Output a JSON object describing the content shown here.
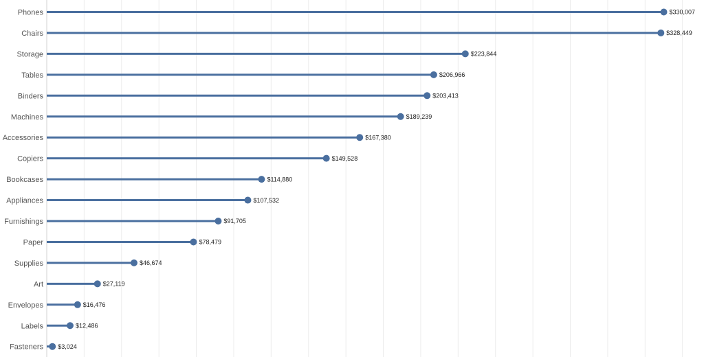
{
  "chart_data": {
    "type": "bar",
    "style": "lollipop",
    "orientation": "horizontal",
    "categories": [
      "Phones",
      "Chairs",
      "Storage",
      "Tables",
      "Binders",
      "Machines",
      "Accessories",
      "Copiers",
      "Bookcases",
      "Appliances",
      "Furnishings",
      "Paper",
      "Supplies",
      "Art",
      "Envelopes",
      "Labels",
      "Fasteners"
    ],
    "values": [
      330007,
      328449,
      223844,
      206966,
      203413,
      189239,
      167380,
      149528,
      114880,
      107532,
      91705,
      78479,
      46674,
      27119,
      16476,
      12486,
      3024
    ],
    "data_labels": [
      "$330,007",
      "$328,449",
      "$223,844",
      "$206,966",
      "$203,413",
      "$189,239",
      "$167,380",
      "$149,528",
      "$114,880",
      "$107,532",
      "$91,705",
      "$78,479",
      "$46,674",
      "$27,119",
      "$16,476",
      "$12,486",
      "$3,024"
    ],
    "xlim": [
      0,
      350000
    ],
    "grid": true,
    "grid_step": 20000,
    "colors": {
      "mark": "#4a6f9f",
      "grid": "#ececec",
      "axis": "#d0d0d0"
    }
  }
}
